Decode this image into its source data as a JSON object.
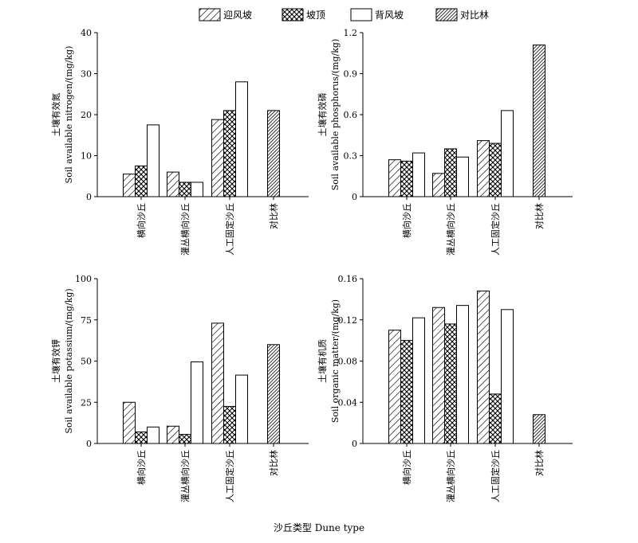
{
  "legend": [
    {
      "name": "迎风坡",
      "pattern": "diag"
    },
    {
      "name": "坡顶",
      "pattern": "cross"
    },
    {
      "name": "背风坡",
      "pattern": "white"
    },
    {
      "name": "对比林",
      "pattern": "dense"
    }
  ],
  "x_title": "沙丘类型 Dune type",
  "chart_data": [
    {
      "type": "bar",
      "categories": [
        "横向沙丘",
        "灌丛横向沙丘",
        "人工固定沙丘",
        "对比林"
      ],
      "ylabel_cn": "土壤有效氮",
      "ylabel_en": "Soil available nitrogen/(mg/kg)",
      "ylim": [
        0,
        40
      ],
      "yticks": [
        "0",
        "10",
        "20",
        "30",
        "40"
      ],
      "series": [
        {
          "name": "迎风坡",
          "values": [
            5.5,
            6.0,
            18.8,
            null
          ]
        },
        {
          "name": "坡顶",
          "values": [
            7.5,
            3.5,
            21.0,
            null
          ]
        },
        {
          "name": "背风坡",
          "values": [
            17.5,
            3.5,
            28.0,
            null
          ]
        },
        {
          "name": "对比林",
          "values": [
            null,
            null,
            null,
            21.0
          ]
        }
      ]
    },
    {
      "type": "bar",
      "categories": [
        "横向沙丘",
        "灌丛横向沙丘",
        "人工固定沙丘",
        "对比林"
      ],
      "ylabel_cn": "土壤有效磷",
      "ylabel_en": "Soil available phosphorus/(mg/kg)",
      "ylim": [
        0,
        1.2
      ],
      "yticks": [
        "0",
        "0.3",
        "0.6",
        "0.9",
        "1.2"
      ],
      "series": [
        {
          "name": "迎风坡",
          "values": [
            0.27,
            0.17,
            0.41,
            null
          ]
        },
        {
          "name": "坡顶",
          "values": [
            0.26,
            0.35,
            0.39,
            null
          ]
        },
        {
          "name": "背风坡",
          "values": [
            0.32,
            0.29,
            0.63,
            null
          ]
        },
        {
          "name": "对比林",
          "values": [
            null,
            null,
            null,
            1.11
          ]
        }
      ]
    },
    {
      "type": "bar",
      "categories": [
        "横向沙丘",
        "灌丛横向沙丘",
        "人工固定沙丘",
        "对比林"
      ],
      "ylabel_cn": "土壤有效钾",
      "ylabel_en": "Soil available potassium/(mg/kg)",
      "ylim": [
        0,
        100
      ],
      "yticks": [
        "0",
        "25",
        "50",
        "75",
        "100"
      ],
      "series": [
        {
          "name": "迎风坡",
          "values": [
            25,
            10.5,
            73,
            null
          ]
        },
        {
          "name": "坡顶",
          "values": [
            7,
            5.5,
            22.5,
            null
          ]
        },
        {
          "name": "背风坡",
          "values": [
            10,
            49.5,
            41.5,
            null
          ]
        },
        {
          "name": "对比林",
          "values": [
            null,
            null,
            null,
            60
          ]
        }
      ]
    },
    {
      "type": "bar",
      "categories": [
        "横向沙丘",
        "灌丛横向沙丘",
        "人工固定沙丘",
        "对比林"
      ],
      "ylabel_cn": "土壤有机质",
      "ylabel_en": "Soil organic matter/(mg/kg)",
      "ylim": [
        0,
        0.16
      ],
      "yticks": [
        "0",
        "0.04",
        "0.08",
        "0.12",
        "0.16"
      ],
      "series": [
        {
          "name": "迎风坡",
          "values": [
            0.11,
            0.132,
            0.148,
            null
          ]
        },
        {
          "name": "坡顶",
          "values": [
            0.1,
            0.116,
            0.048,
            null
          ]
        },
        {
          "name": "背风坡",
          "values": [
            0.122,
            0.134,
            0.13,
            null
          ]
        },
        {
          "name": "对比林",
          "values": [
            null,
            null,
            null,
            0.028
          ]
        }
      ]
    }
  ]
}
